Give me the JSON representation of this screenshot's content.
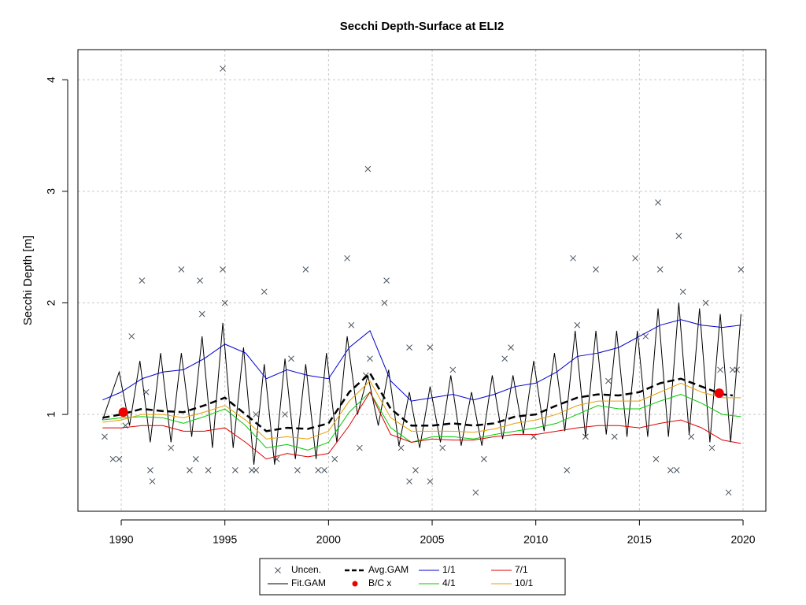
{
  "chart_data": {
    "type": "line",
    "title": "Secchi Depth-Surface at ELI2",
    "ylabel": "Secchi Depth [m]",
    "xlim": [
      1987.91,
      2021.1
    ],
    "ylim": [
      0.132,
      4.27
    ],
    "xticks": [
      1990,
      1995,
      2000,
      2005,
      2010,
      2015,
      2020
    ],
    "yticks": [
      1,
      2,
      3,
      4
    ],
    "grid": true,
    "legend": "bottom",
    "series": [
      {
        "name": "Uncen.",
        "color": "#4a5560",
        "mark": "cross",
        "x": [
          1994.9,
          2001.9,
          2015.9,
          2016.9,
          1991,
          1992.9,
          1993.8,
          1994.9,
          1995,
          1996.9,
          1998.9,
          2000.9,
          2002.8,
          2002.7,
          2011.8,
          2012.9,
          2014.8,
          2016,
          2017.1,
          2019.9,
          2018.2,
          1993.9,
          1990.5,
          2004.9,
          2003.9,
          2008.8,
          2001.1,
          1991.2,
          1991.4,
          1991.5,
          1992.4,
          1993.3,
          1993.6,
          1994.2,
          1995.5,
          1996.3,
          1996.5,
          1997.5,
          1998.5,
          1999.5,
          1999.8,
          2000.3,
          2001.5,
          2003.5,
          2003.9,
          2004.2,
          2004.9,
          2005.5,
          2007.1,
          2007.5,
          2009.9,
          2011.5,
          2012.4,
          2013.8,
          2015.8,
          2016.5,
          2016.8,
          2019.3,
          1989.2,
          1989.6,
          1989.9,
          1990.2,
          2017.5,
          2018.5,
          2019.5,
          2019.7,
          2018.9,
          2015.3,
          2012,
          2013.5,
          2006,
          2008.5,
          2002,
          2001.8,
          1998.2,
          1996.5,
          1997.9
        ],
        "values": [
          4.1,
          3.2,
          2.9,
          2.6,
          2.2,
          2.3,
          2.2,
          2.3,
          2.0,
          2.1,
          2.3,
          2.4,
          2.2,
          2.0,
          2.4,
          2.3,
          2.4,
          2.3,
          2.1,
          2.3,
          2.0,
          1.9,
          1.7,
          1.6,
          1.6,
          1.6,
          1.8,
          1.2,
          0.5,
          0.4,
          0.7,
          0.5,
          0.6,
          0.5,
          0.5,
          0.5,
          0.5,
          0.6,
          0.5,
          0.5,
          0.5,
          0.6,
          0.7,
          0.7,
          0.4,
          0.5,
          0.4,
          0.7,
          0.3,
          0.6,
          0.8,
          0.5,
          0.8,
          0.8,
          0.6,
          0.5,
          0.5,
          0.3,
          0.8,
          0.6,
          0.6,
          0.9,
          0.8,
          0.7,
          1.4,
          1.4,
          1.4,
          1.7,
          1.8,
          1.3,
          1.4,
          1.5,
          1.5,
          1.35,
          1.5,
          1.0,
          1.0
        ]
      },
      {
        "name": "Fit.GAM",
        "color": "#000000",
        "mark": "line",
        "x": [
          1989.1,
          1989.9,
          1990.4,
          1990.9,
          1991.4,
          1991.9,
          1992.4,
          1992.9,
          1993.4,
          1993.9,
          1994.4,
          1994.9,
          1995.4,
          1995.9,
          1996.4,
          1996.9,
          1997.4,
          1997.9,
          1998.4,
          1998.9,
          1999.4,
          1999.9,
          2000.4,
          2000.9,
          2001.4,
          2001.9,
          2002.4,
          2002.9,
          2003.4,
          2003.9,
          2004.4,
          2004.9,
          2005.4,
          2005.9,
          2006.4,
          2006.9,
          2007.4,
          2007.9,
          2008.4,
          2008.9,
          2009.4,
          2009.9,
          2010.4,
          2010.9,
          2011.4,
          2011.9,
          2012.4,
          2012.9,
          2013.4,
          2013.9,
          2014.4,
          2014.9,
          2015.4,
          2015.9,
          2016.4,
          2016.9,
          2017.4,
          2017.9,
          2018.4,
          2018.9,
          2019.4,
          2019.9
        ],
        "values": [
          0.95,
          1.38,
          0.9,
          1.48,
          0.75,
          1.55,
          0.75,
          1.55,
          0.8,
          1.7,
          0.7,
          1.82,
          0.7,
          1.6,
          0.55,
          1.45,
          0.55,
          1.5,
          0.6,
          1.45,
          0.6,
          1.55,
          0.75,
          1.7,
          1.0,
          1.35,
          0.9,
          1.4,
          0.72,
          1.2,
          0.7,
          1.25,
          0.75,
          1.35,
          0.72,
          1.2,
          0.72,
          1.35,
          0.78,
          1.35,
          0.82,
          1.48,
          0.85,
          1.55,
          0.85,
          1.75,
          0.8,
          1.75,
          0.82,
          1.75,
          0.8,
          1.75,
          0.8,
          1.95,
          0.8,
          2.0,
          0.82,
          1.95,
          0.75,
          1.9,
          0.75,
          1.9
        ]
      },
      {
        "name": "Avg.GAM",
        "color": "#000000",
        "mark": "dash",
        "x": [
          1989.1,
          1990,
          1991,
          1992,
          1993,
          1994,
          1995,
          1996,
          1997,
          1998,
          1999,
          2000,
          2001,
          2002,
          2003,
          2004,
          2005,
          2006,
          2007,
          2008,
          2009,
          2010,
          2011,
          2012,
          2013,
          2014,
          2015,
          2016,
          2017,
          2018,
          2019,
          2019.5
        ],
        "values": [
          0.97,
          1.0,
          1.05,
          1.03,
          1.02,
          1.08,
          1.15,
          1.0,
          0.85,
          0.88,
          0.87,
          0.92,
          1.2,
          1.37,
          1.05,
          0.9,
          0.9,
          0.92,
          0.9,
          0.92,
          0.98,
          1.0,
          1.08,
          1.15,
          1.18,
          1.17,
          1.2,
          1.28,
          1.32,
          1.25,
          1.18,
          1.17
        ]
      },
      {
        "name": "B/C x",
        "color": "#ee0000",
        "mark": "circle",
        "x": [
          1990.1,
          2018.85
        ],
        "values": [
          1.02,
          1.19
        ]
      },
      {
        "name": "1/1",
        "color": "#0000cc",
        "mark": "line",
        "x": [
          1989.1,
          1990,
          1991,
          1992,
          1993,
          1994,
          1995,
          1996,
          1997,
          1998,
          1999,
          2000,
          2001,
          2002,
          2003,
          2004,
          2005,
          2006,
          2007,
          2008,
          2009,
          2010,
          2011,
          2012,
          2013,
          2014,
          2015,
          2016,
          2017,
          2018,
          2019,
          2019.9
        ],
        "values": [
          1.13,
          1.2,
          1.32,
          1.38,
          1.4,
          1.5,
          1.63,
          1.55,
          1.32,
          1.4,
          1.35,
          1.32,
          1.6,
          1.75,
          1.3,
          1.12,
          1.15,
          1.18,
          1.13,
          1.18,
          1.25,
          1.28,
          1.38,
          1.52,
          1.55,
          1.6,
          1.7,
          1.8,
          1.85,
          1.8,
          1.78,
          1.8
        ]
      },
      {
        "name": "4/1",
        "color": "#00cc00",
        "mark": "line",
        "x": [
          1989.1,
          1990,
          1991,
          1992,
          1993,
          1994,
          1995,
          1996,
          1997,
          1998,
          1999,
          2000,
          2001,
          2002,
          2003,
          2004,
          2005,
          2006,
          2007,
          2008,
          2009,
          2010,
          2011,
          2012,
          2013,
          2014,
          2015,
          2016,
          2017,
          2018,
          2019,
          2019.9
        ],
        "values": [
          0.95,
          0.97,
          0.98,
          0.97,
          0.92,
          0.98,
          1.05,
          0.9,
          0.7,
          0.73,
          0.68,
          0.75,
          1.02,
          1.2,
          0.88,
          0.75,
          0.8,
          0.8,
          0.78,
          0.82,
          0.85,
          0.88,
          0.92,
          1.0,
          1.08,
          1.05,
          1.05,
          1.12,
          1.18,
          1.1,
          1.0,
          0.98
        ]
      },
      {
        "name": "7/1",
        "color": "#dd0000",
        "mark": "line",
        "x": [
          1989.1,
          1990,
          1991,
          1992,
          1993,
          1994,
          1995,
          1996,
          1997,
          1998,
          1999,
          2000,
          2001,
          2002,
          2003,
          2004,
          2005,
          2006,
          2007,
          2008,
          2009,
          2010,
          2011,
          2012,
          2013,
          2014,
          2015,
          2016,
          2017,
          2018,
          2019,
          2019.9
        ],
        "values": [
          0.88,
          0.88,
          0.9,
          0.9,
          0.85,
          0.85,
          0.88,
          0.75,
          0.6,
          0.65,
          0.62,
          0.65,
          0.9,
          1.2,
          0.82,
          0.75,
          0.78,
          0.77,
          0.77,
          0.8,
          0.82,
          0.82,
          0.85,
          0.88,
          0.9,
          0.9,
          0.88,
          0.92,
          0.95,
          0.88,
          0.77,
          0.74
        ]
      },
      {
        "name": "10/1",
        "color": "#e8a000",
        "mark": "line",
        "x": [
          1989.1,
          1990,
          1991,
          1992,
          1993,
          1994,
          1995,
          1996,
          1997,
          1998,
          1999,
          2000,
          2001,
          2002,
          2003,
          2004,
          2005,
          2006,
          2007,
          2008,
          2009,
          2010,
          2011,
          2012,
          2013,
          2014,
          2015,
          2016,
          2017,
          2018,
          2019,
          2019.9
        ],
        "values": [
          0.93,
          0.95,
          1.0,
          1.0,
          0.97,
          1.02,
          1.08,
          0.95,
          0.78,
          0.8,
          0.78,
          0.85,
          1.12,
          1.3,
          0.97,
          0.85,
          0.85,
          0.85,
          0.84,
          0.87,
          0.92,
          0.95,
          1.0,
          1.08,
          1.12,
          1.12,
          1.12,
          1.2,
          1.28,
          1.2,
          1.15,
          1.15
        ]
      }
    ]
  }
}
